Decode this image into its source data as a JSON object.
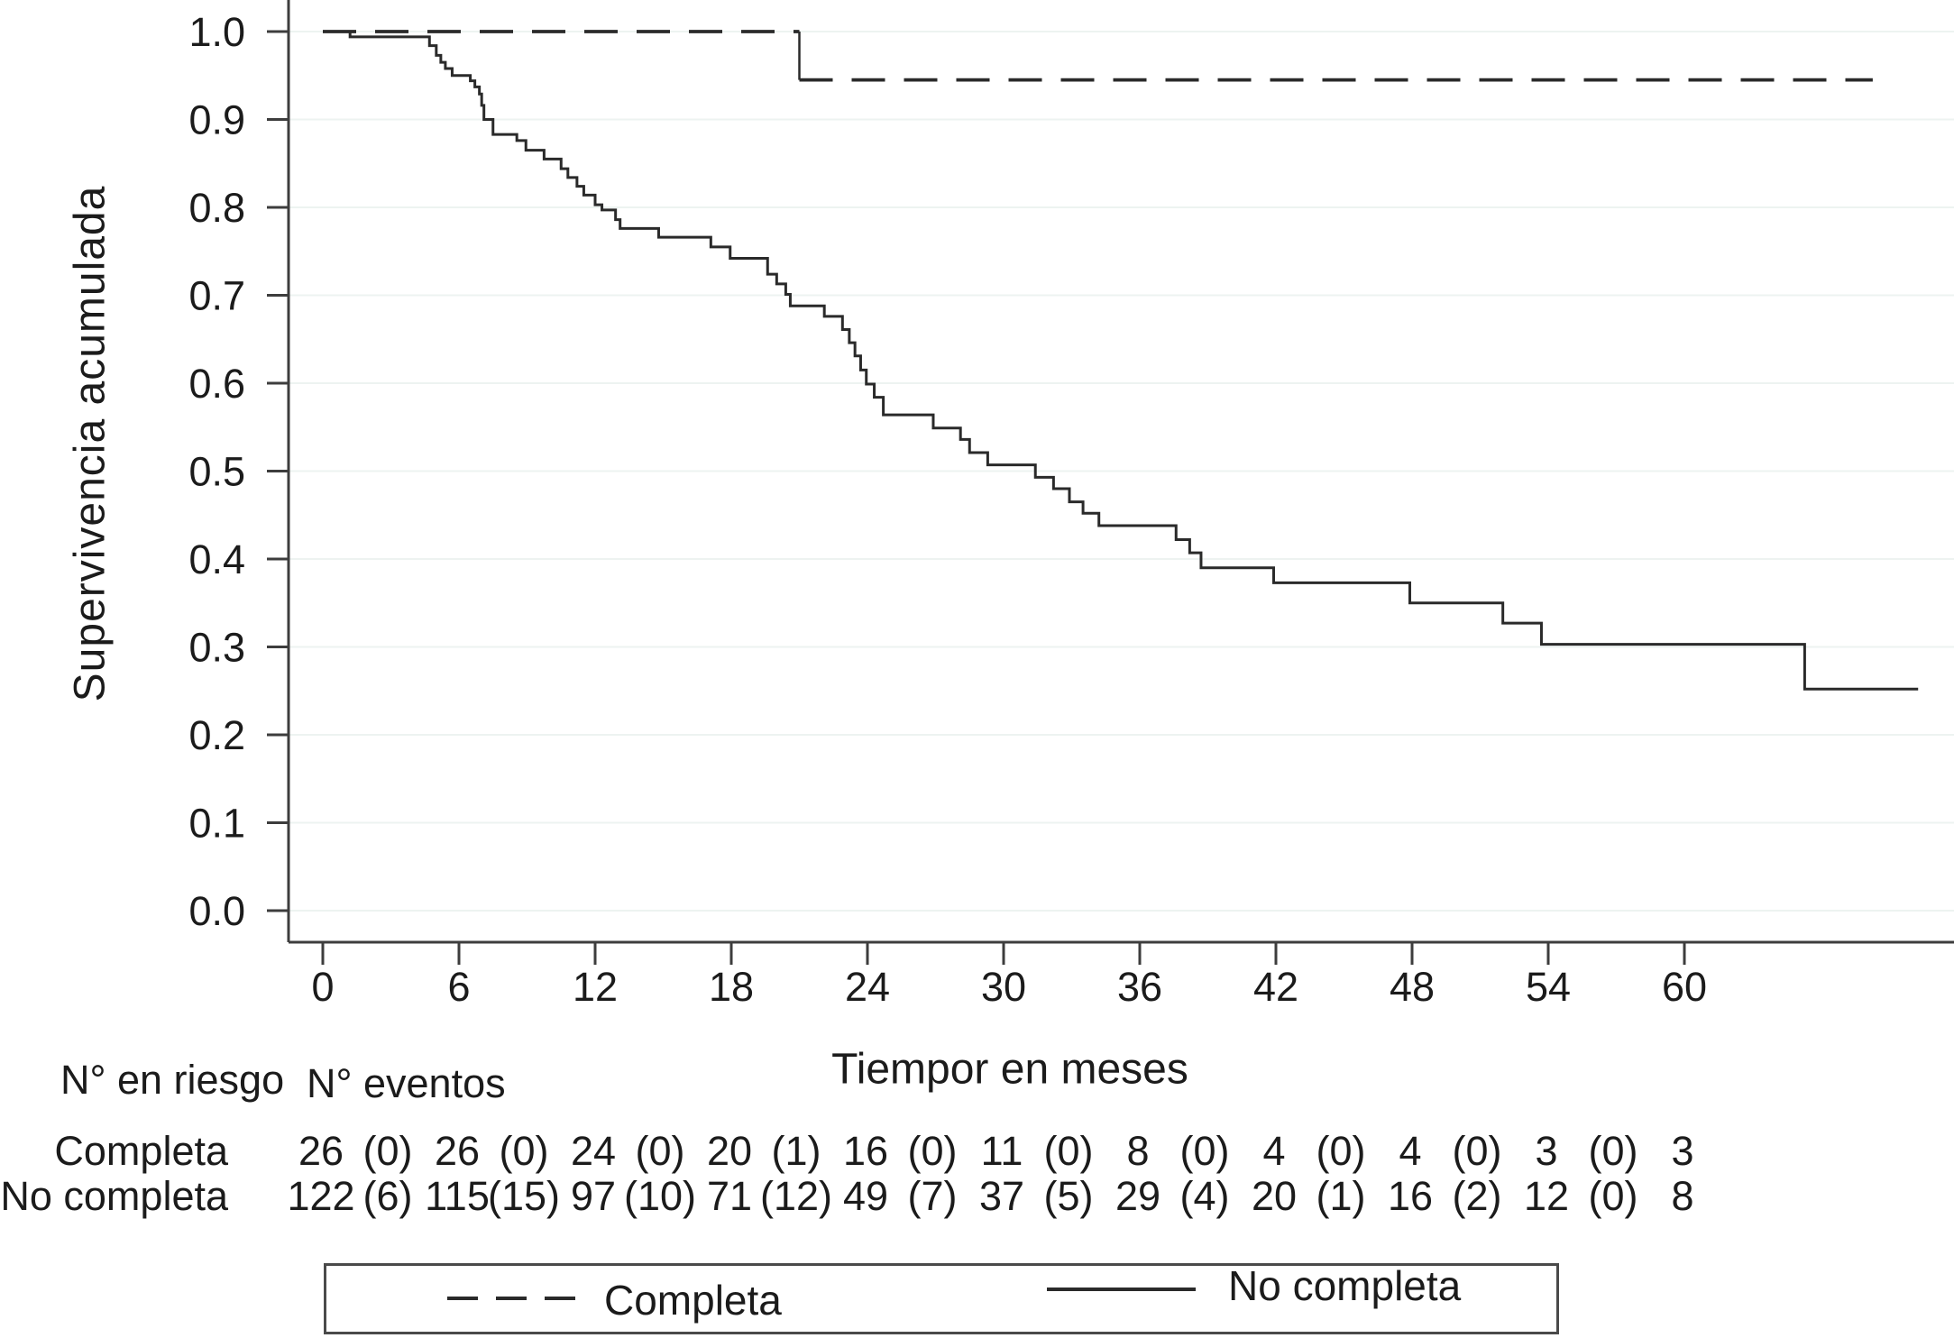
{
  "chart_data": {
    "type": "line",
    "subtype": "kaplan-meier-step-survival",
    "title": "",
    "xlabel": "Tiempor en meses",
    "ylabel": "Supervivencia acumulada",
    "xlim": [
      0,
      71.9
    ],
    "ylim": [
      0.0,
      1.0
    ],
    "grid": true,
    "gridline_color": "#edf3f1",
    "axis_color": "#3d3d3d",
    "x_ticks": [
      [
        0,
        "0"
      ],
      [
        6,
        "6"
      ],
      [
        12,
        "12"
      ],
      [
        18,
        "18"
      ],
      [
        24,
        "24"
      ],
      [
        30,
        "30"
      ],
      [
        36,
        "36"
      ],
      [
        42,
        "42"
      ],
      [
        48,
        "48"
      ],
      [
        54,
        "54"
      ],
      [
        60,
        "60"
      ]
    ],
    "y_ticks": [
      [
        0.0,
        "0.0"
      ],
      [
        0.1,
        "0.1"
      ],
      [
        0.2,
        "0.2"
      ],
      [
        0.3,
        "0.3"
      ],
      [
        0.4,
        "0.4"
      ],
      [
        0.5,
        "0.5"
      ],
      [
        0.6,
        "0.6"
      ],
      [
        0.7,
        "0.7"
      ],
      [
        0.8,
        "0.8"
      ],
      [
        0.9,
        "0.9"
      ],
      [
        1.0,
        "1.0"
      ]
    ],
    "legend_position": "bottom",
    "series": [
      {
        "name": "Completa",
        "style": "dashed",
        "color": "#2a2a2a",
        "start": [
          0,
          1.0
        ],
        "steps": [
          [
            21.0,
            0.945
          ]
        ],
        "end_t": 68.3
      },
      {
        "name": "No completa",
        "style": "solid",
        "color": "#2a2a2a",
        "start": [
          0,
          1.0
        ],
        "steps": [
          [
            1.2,
            0.994
          ],
          [
            4.7,
            0.984
          ],
          [
            5.0,
            0.973
          ],
          [
            5.2,
            0.965
          ],
          [
            5.4,
            0.958
          ],
          [
            5.7,
            0.95
          ],
          [
            6.5,
            0.944
          ],
          [
            6.7,
            0.937
          ],
          [
            6.9,
            0.929
          ],
          [
            7.0,
            0.916
          ],
          [
            7.1,
            0.9
          ],
          [
            7.5,
            0.883
          ],
          [
            8.55,
            0.876
          ],
          [
            8.95,
            0.865
          ],
          [
            9.75,
            0.855
          ],
          [
            10.5,
            0.844
          ],
          [
            10.8,
            0.834
          ],
          [
            11.2,
            0.824
          ],
          [
            11.5,
            0.814
          ],
          [
            12.0,
            0.803
          ],
          [
            12.3,
            0.797
          ],
          [
            12.9,
            0.786
          ],
          [
            13.1,
            0.776
          ],
          [
            14.8,
            0.766
          ],
          [
            17.1,
            0.755
          ],
          [
            17.95,
            0.742
          ],
          [
            19.6,
            0.724
          ],
          [
            20.0,
            0.713
          ],
          [
            20.4,
            0.701
          ],
          [
            20.6,
            0.688
          ],
          [
            22.1,
            0.676
          ],
          [
            22.9,
            0.661
          ],
          [
            23.2,
            0.646
          ],
          [
            23.45,
            0.631
          ],
          [
            23.7,
            0.615
          ],
          [
            23.95,
            0.599
          ],
          [
            24.3,
            0.584
          ],
          [
            24.7,
            0.564
          ],
          [
            26.9,
            0.549
          ],
          [
            28.1,
            0.536
          ],
          [
            28.5,
            0.521
          ],
          [
            29.3,
            0.507
          ],
          [
            31.4,
            0.493
          ],
          [
            32.2,
            0.48
          ],
          [
            32.9,
            0.465
          ],
          [
            33.5,
            0.452
          ],
          [
            34.2,
            0.438
          ],
          [
            37.6,
            0.422
          ],
          [
            38.2,
            0.407
          ],
          [
            38.7,
            0.39
          ],
          [
            41.9,
            0.373
          ],
          [
            47.9,
            0.35
          ],
          [
            52.0,
            0.327
          ],
          [
            53.7,
            0.303
          ],
          [
            65.3,
            0.252
          ]
        ],
        "end_t": 70.3
      }
    ]
  },
  "risk_table": {
    "header_risk": "N° en riesgo",
    "header_events": "N° eventos",
    "time_points": [
      0,
      6,
      12,
      18,
      24,
      30,
      36,
      42,
      48,
      54,
      60
    ],
    "rows": [
      {
        "label": "Completa",
        "at_risk": [
          "26",
          "26",
          "24",
          "20",
          "16",
          "11",
          "8",
          "4",
          "4",
          "3",
          "3"
        ],
        "events": [
          "(0)",
          "(0)",
          "(0)",
          "(1)",
          "(0)",
          "(0)",
          "(0)",
          "(0)",
          "(0)",
          "(0)"
        ]
      },
      {
        "label": "No completa",
        "at_risk": [
          "122",
          "115",
          "97",
          "71",
          "49",
          "37",
          "29",
          "20",
          "16",
          "12",
          "8"
        ],
        "events": [
          "(6)",
          "(15)",
          "(10)",
          "(12)",
          "(7)",
          "(5)",
          "(4)",
          "(1)",
          "(2)",
          "(0)"
        ]
      }
    ]
  },
  "legend": {
    "items": [
      {
        "label": "Completa",
        "style": "dashed"
      },
      {
        "label": "No completa",
        "style": "solid"
      }
    ]
  }
}
